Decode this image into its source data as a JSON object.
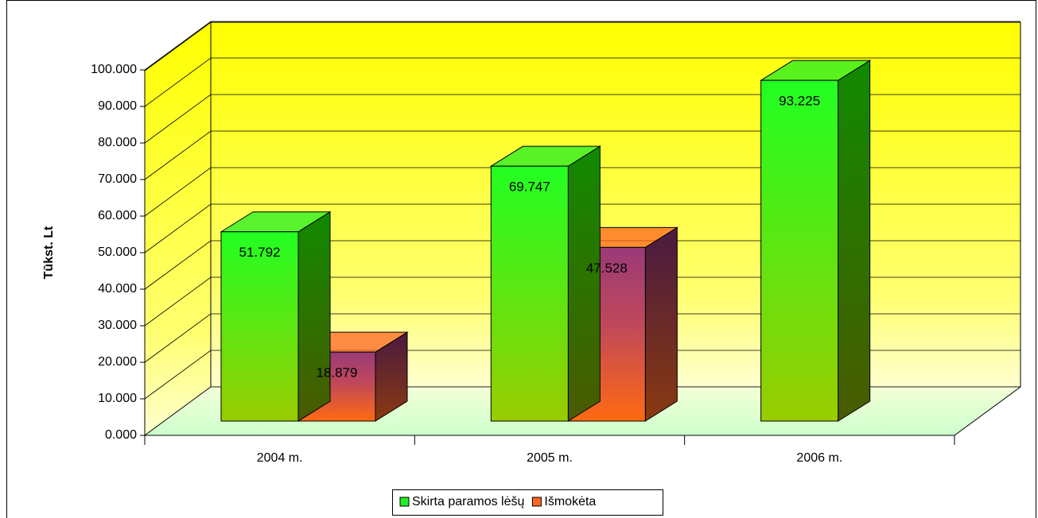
{
  "chart_data": {
    "type": "bar",
    "y_label": "Tūkst. Lt",
    "categories": [
      "2004 m.",
      "2005 m.",
      "2006 m."
    ],
    "series": [
      {
        "name": "Skirta paramos lėšų",
        "color": "#22ee22",
        "values": [
          51792,
          69747,
          93225
        ],
        "value_labels": [
          "51.792",
          "69.747",
          "93.225"
        ]
      },
      {
        "name": "Išmokėta",
        "color": "#ff6622",
        "values": [
          18879,
          47528,
          null
        ],
        "value_labels": [
          "18.879",
          "47.528",
          null
        ]
      }
    ],
    "ylim": [
      0,
      100000
    ],
    "yticks": [
      {
        "value": 0,
        "label": "0.000"
      },
      {
        "value": 10000,
        "label": "10.000"
      },
      {
        "value": 20000,
        "label": "20.000"
      },
      {
        "value": 30000,
        "label": "30.000"
      },
      {
        "value": 40000,
        "label": "40.000"
      },
      {
        "value": 50000,
        "label": "50.000"
      },
      {
        "value": 60000,
        "label": "60.000"
      },
      {
        "value": 70000,
        "label": "70.000"
      },
      {
        "value": 80000,
        "label": "80.000"
      },
      {
        "value": 90000,
        "label": "90.000"
      },
      {
        "value": 100000,
        "label": "100.000"
      }
    ],
    "grid": true
  }
}
